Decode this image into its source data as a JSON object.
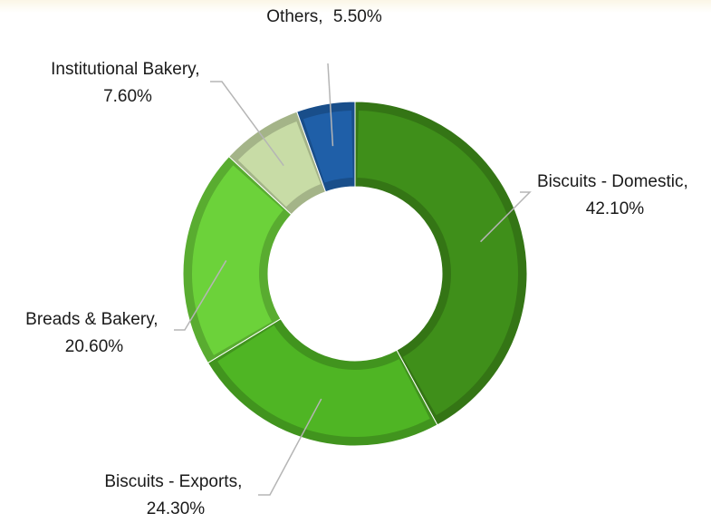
{
  "chart_data": {
    "type": "pie",
    "variant": "donut",
    "slices": [
      {
        "label": "Biscuits - Domestic,",
        "value": 42.1,
        "value_label": "42.10%",
        "color": "#3f8f1a"
      },
      {
        "label": "Biscuits - Exports,",
        "value": 24.3,
        "value_label": "24.30%",
        "color": "#4fb524"
      },
      {
        "label": "Breads & Bakery,",
        "value": 20.6,
        "value_label": "20.60%",
        "color": "#6cd23a"
      },
      {
        "label": "Institutional Bakery,",
        "value": 7.6,
        "value_label": "7.60%",
        "color": "#c8dca6"
      },
      {
        "label": "Others,",
        "value": 5.5,
        "value_label": "5.50%",
        "color": "#1f5fa8"
      }
    ]
  }
}
